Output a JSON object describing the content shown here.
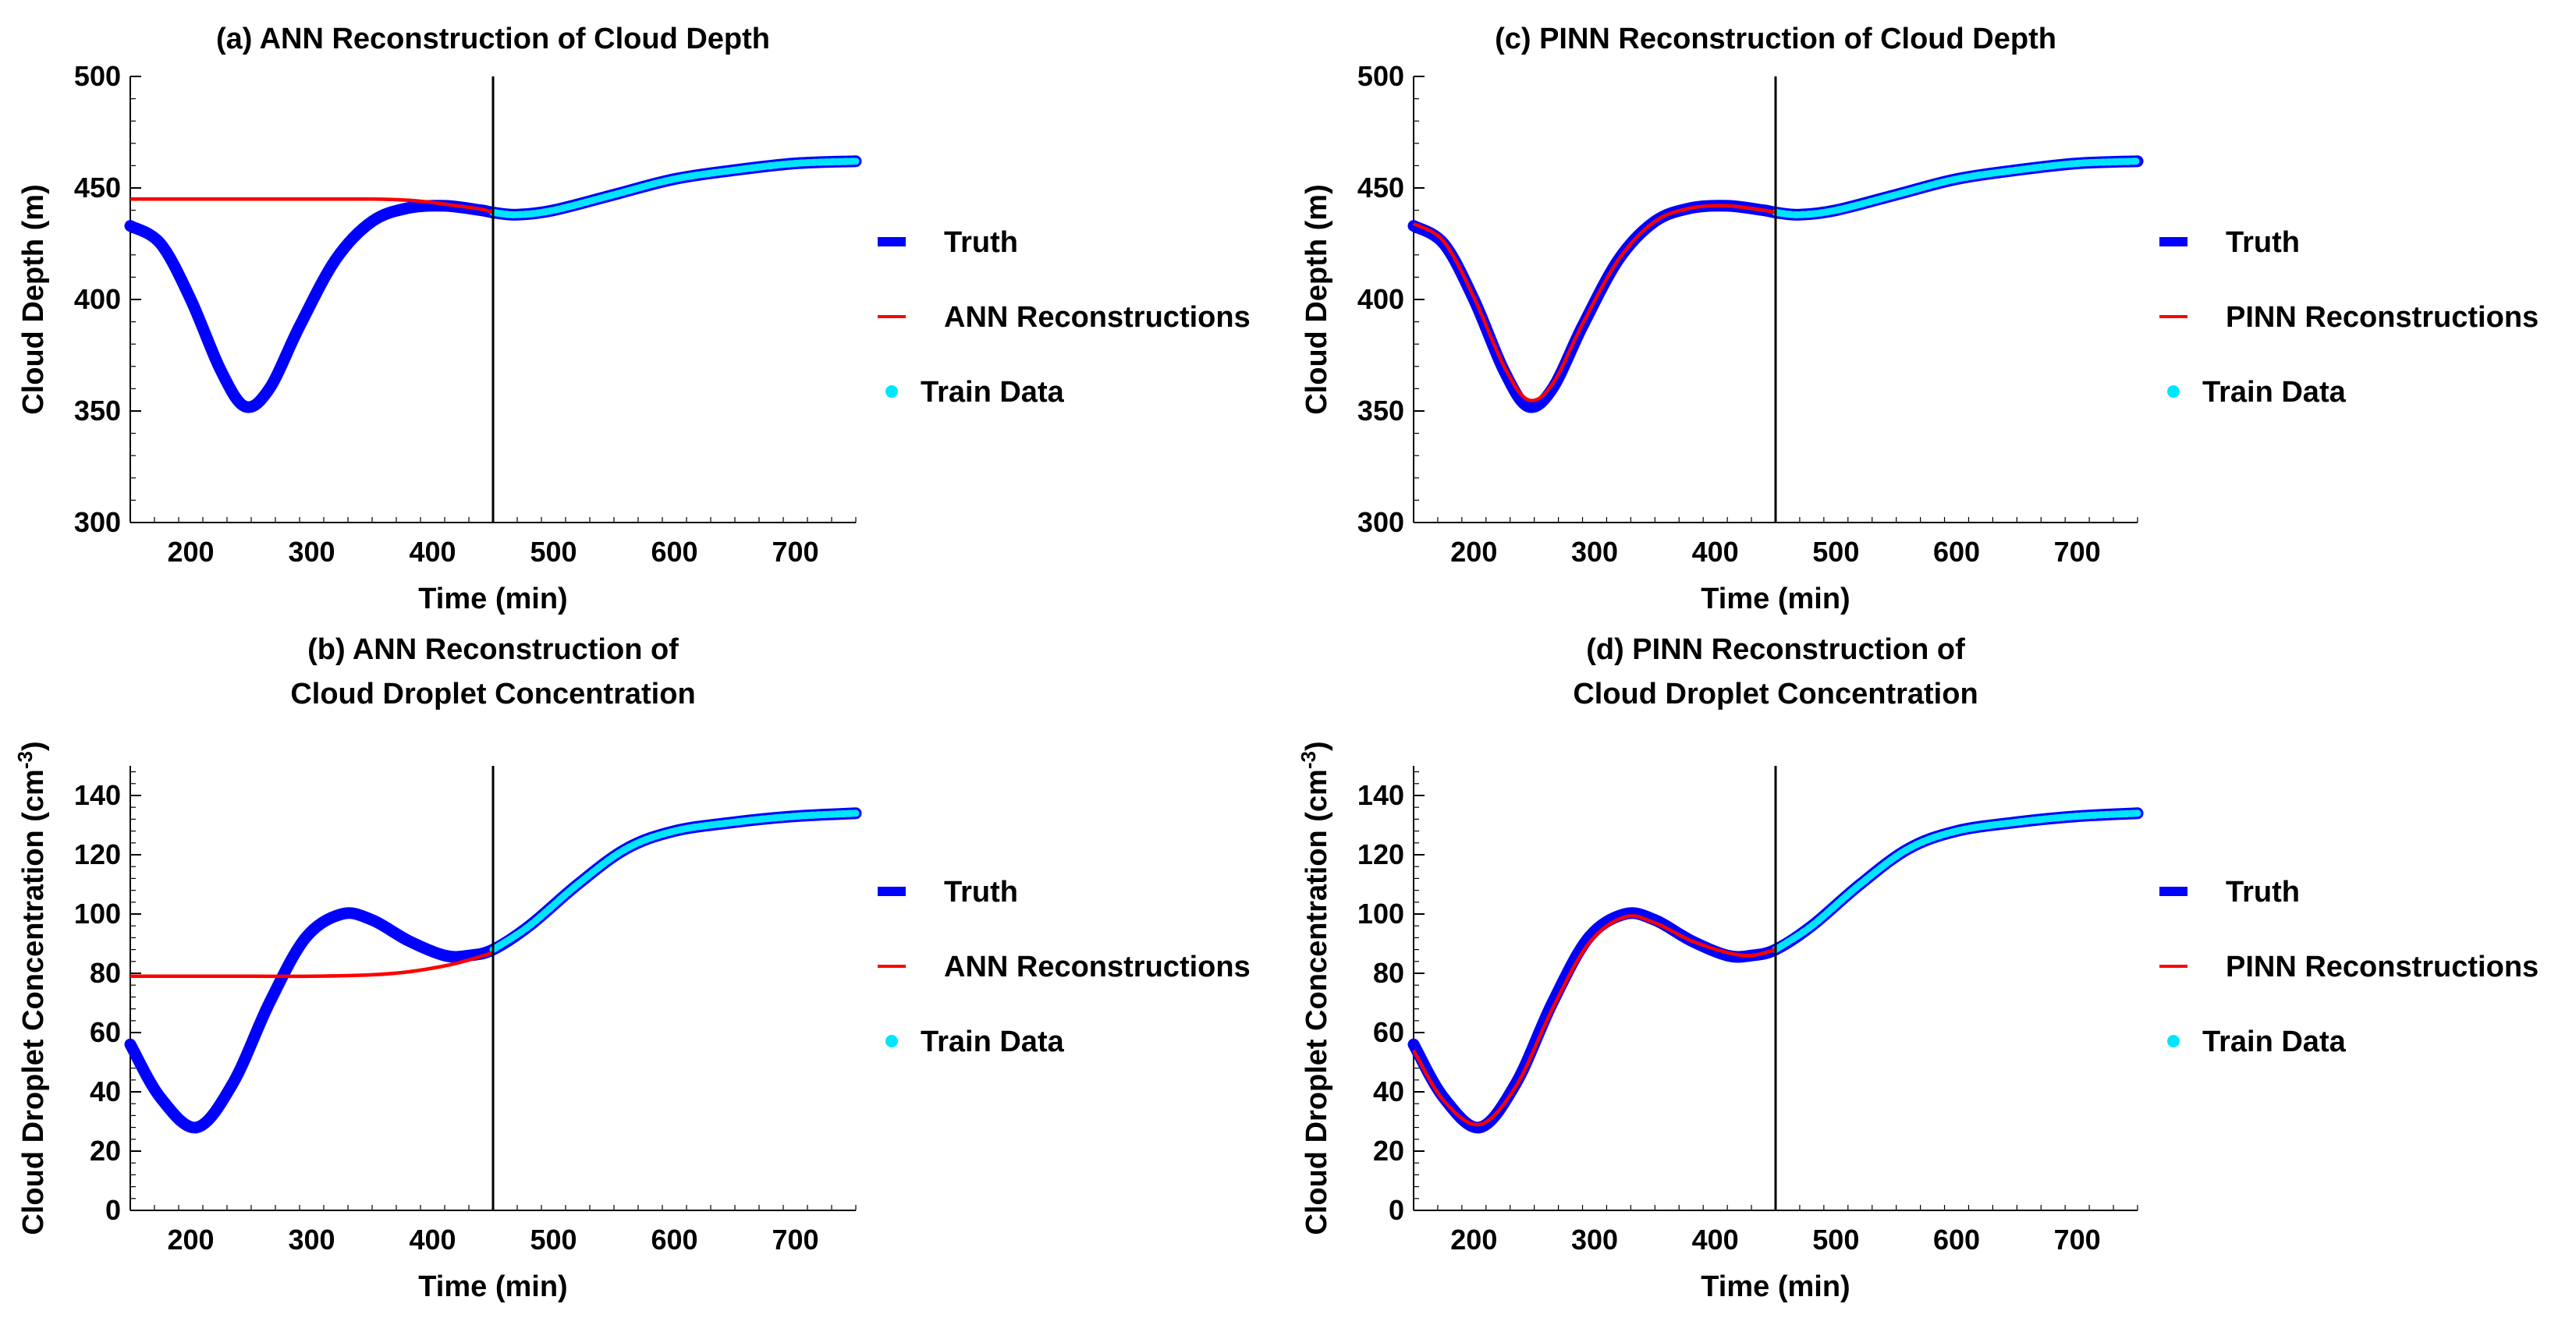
{
  "figure": {
    "panels": [
      {
        "id": "a",
        "title_lines": [
          "(a) ANN Reconstruction of Cloud Depth"
        ],
        "xlabel": "Time (min)",
        "ylabel": "Cloud Depth (m)",
        "legend": [
          "Truth",
          "ANN Reconstructions",
          "Train Data"
        ]
      },
      {
        "id": "b",
        "title_lines": [
          "(b) ANN Reconstruction of",
          "Cloud Droplet Concentration"
        ],
        "xlabel": "Time (min)",
        "ylabel": "Cloud Droplet Concentration (cm",
        "ylabel_sup": "-3",
        "ylabel_end": ")",
        "legend": [
          "Truth",
          "ANN Reconstructions",
          "Train Data"
        ]
      },
      {
        "id": "c",
        "title_lines": [
          "(c) PINN Reconstruction of Cloud Depth"
        ],
        "xlabel": "Time (min)",
        "ylabel": "Cloud Depth (m)",
        "legend": [
          "Truth",
          "PINN Reconstructions",
          "Train Data"
        ]
      },
      {
        "id": "d",
        "title_lines": [
          "(d) PINN Reconstruction of",
          "Cloud Droplet Concentration"
        ],
        "xlabel": "Time (min)",
        "ylabel": "Cloud Droplet Concentration (cm",
        "ylabel_sup": "-3",
        "ylabel_end": ")",
        "legend": [
          "Truth",
          "PINN Reconstructions",
          "Train Data"
        ]
      }
    ]
  },
  "colors": {
    "truth": "#0000ff",
    "reconstruction": "#ff0000",
    "train": "#00e5ff",
    "axis": "#000000"
  },
  "chart_data": [
    {
      "panel": "a",
      "type": "line",
      "title": "(a) ANN Reconstruction of Cloud Depth",
      "xlabel": "Time (min)",
      "ylabel": "Cloud Depth (m)",
      "xlim": [
        150,
        750
      ],
      "ylim": [
        300,
        500
      ],
      "xticks": [
        200,
        300,
        400,
        500,
        600,
        700
      ],
      "yticks": [
        300,
        350,
        400,
        450,
        500
      ],
      "vline_x": 450,
      "series": [
        {
          "name": "Truth",
          "x": [
            150,
            175,
            200,
            225,
            245,
            265,
            290,
            320,
            350,
            380,
            410,
            440,
            450,
            470,
            500,
            550,
            600,
            650,
            700,
            750
          ],
          "y": [
            433,
            425,
            400,
            368,
            352,
            360,
            388,
            418,
            435,
            441,
            442,
            440,
            439,
            438,
            440,
            447,
            454,
            458,
            461,
            462
          ]
        },
        {
          "name": "ANN Reconstructions",
          "x": [
            150,
            200,
            250,
            300,
            350,
            380,
            400,
            420,
            440,
            450
          ],
          "y": [
            445,
            445,
            445,
            445,
            445,
            444.5,
            443.5,
            442,
            440.5,
            439
          ]
        },
        {
          "name": "Train Data",
          "x": [
            450,
            470,
            500,
            550,
            600,
            650,
            700,
            750
          ],
          "y": [
            439,
            438,
            440,
            447,
            454,
            458,
            461,
            462
          ]
        }
      ]
    },
    {
      "panel": "b",
      "type": "line",
      "title": "(b) ANN Reconstruction of Cloud Droplet Concentration",
      "xlabel": "Time (min)",
      "ylabel": "Cloud Droplet Concentration (cm-3)",
      "xlim": [
        150,
        750
      ],
      "ylim": [
        0,
        150
      ],
      "xticks": [
        200,
        300,
        400,
        500,
        600,
        700
      ],
      "yticks": [
        0,
        20,
        40,
        60,
        80,
        100,
        120,
        140
      ],
      "vline_x": 450,
      "series": [
        {
          "name": "Truth",
          "x": [
            150,
            175,
            205,
            235,
            265,
            295,
            325,
            350,
            380,
            410,
            430,
            450,
            480,
            520,
            560,
            600,
            650,
            700,
            750
          ],
          "y": [
            56,
            38,
            28,
            43,
            70,
            92,
            100,
            98,
            91,
            86,
            86,
            88,
            96,
            110,
            122,
            128,
            131,
            133,
            134
          ]
        },
        {
          "name": "ANN Reconstructions",
          "x": [
            150,
            250,
            300,
            350,
            380,
            410,
            430,
            450
          ],
          "y": [
            79,
            79,
            79,
            79.5,
            80.5,
            82.5,
            84.5,
            87
          ]
        },
        {
          "name": "Train Data",
          "x": [
            450,
            480,
            520,
            560,
            600,
            650,
            700,
            750
          ],
          "y": [
            88,
            96,
            110,
            122,
            128,
            131,
            133,
            134
          ]
        }
      ]
    },
    {
      "panel": "c",
      "type": "line",
      "title": "(c) PINN Reconstruction of Cloud Depth",
      "xlabel": "Time (min)",
      "ylabel": "Cloud Depth (m)",
      "xlim": [
        150,
        750
      ],
      "ylim": [
        300,
        500
      ],
      "xticks": [
        200,
        300,
        400,
        500,
        600,
        700
      ],
      "yticks": [
        300,
        350,
        400,
        450,
        500
      ],
      "vline_x": 450,
      "series": [
        {
          "name": "Truth",
          "x": [
            150,
            175,
            200,
            225,
            245,
            265,
            290,
            320,
            350,
            380,
            410,
            440,
            450,
            470,
            500,
            550,
            600,
            650,
            700,
            750
          ],
          "y": [
            433,
            425,
            400,
            368,
            352,
            360,
            388,
            418,
            435,
            441,
            442,
            440,
            439,
            438,
            440,
            447,
            454,
            458,
            461,
            462
          ]
        },
        {
          "name": "PINN Reconstructions",
          "x": [
            150,
            175,
            200,
            225,
            245,
            265,
            290,
            320,
            350,
            380,
            410,
            440,
            450
          ],
          "y": [
            434,
            426,
            401,
            370,
            355,
            362,
            389,
            418,
            435,
            441,
            442,
            440,
            439
          ]
        },
        {
          "name": "Train Data",
          "x": [
            450,
            470,
            500,
            550,
            600,
            650,
            700,
            750
          ],
          "y": [
            439,
            438,
            440,
            447,
            454,
            458,
            461,
            462
          ]
        }
      ]
    },
    {
      "panel": "d",
      "type": "line",
      "title": "(d) PINN Reconstruction of Cloud Droplet Concentration",
      "xlabel": "Time (min)",
      "ylabel": "Cloud Droplet Concentration (cm-3)",
      "xlim": [
        150,
        750
      ],
      "ylim": [
        0,
        150
      ],
      "xticks": [
        200,
        300,
        400,
        500,
        600,
        700
      ],
      "yticks": [
        0,
        20,
        40,
        60,
        80,
        100,
        120,
        140
      ],
      "vline_x": 450,
      "series": [
        {
          "name": "Truth",
          "x": [
            150,
            175,
            205,
            235,
            265,
            295,
            325,
            350,
            380,
            410,
            430,
            450,
            480,
            520,
            560,
            600,
            650,
            700,
            750
          ],
          "y": [
            56,
            38,
            28,
            43,
            70,
            92,
            100,
            98,
            91,
            86,
            86,
            88,
            96,
            110,
            122,
            128,
            131,
            133,
            134
          ]
        },
        {
          "name": "PINN Reconstructions",
          "x": [
            150,
            175,
            205,
            235,
            265,
            295,
            325,
            350,
            380,
            410,
            430,
            450
          ],
          "y": [
            54,
            37,
            29,
            42,
            68,
            90,
            99,
            97,
            91,
            87,
            86,
            88
          ]
        },
        {
          "name": "Train Data",
          "x": [
            450,
            480,
            520,
            560,
            600,
            650,
            700,
            750
          ],
          "y": [
            88,
            96,
            110,
            122,
            128,
            131,
            133,
            134
          ]
        }
      ]
    }
  ]
}
